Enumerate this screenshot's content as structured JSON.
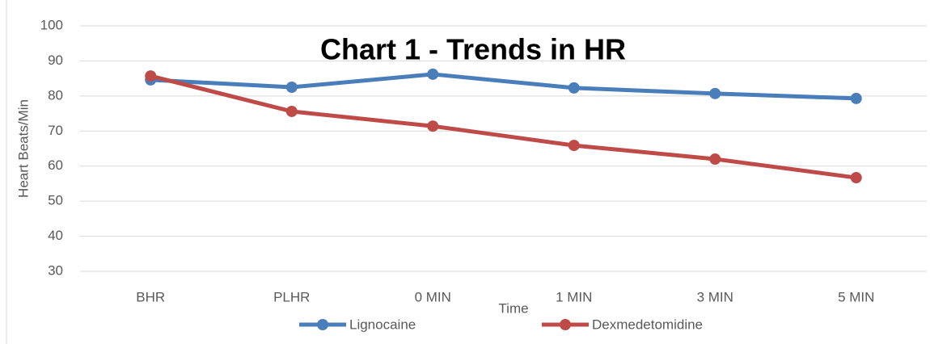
{
  "chart_data": {
    "type": "line",
    "title": "Chart 1 - Trends in HR",
    "x_label": "Time",
    "y_label": "Heart Beats/Min",
    "categories": [
      "BHR",
      "PLHR",
      "0 MIN",
      "1 MIN",
      "3 MIN",
      "5 MIN"
    ],
    "series": [
      {
        "name": "Lignocaine",
        "color": "#4a7ebb",
        "values": [
          84.6,
          82.5,
          86.2,
          82.3,
          80.7,
          79.3
        ]
      },
      {
        "name": "Dexmedetomidine",
        "color": "#be4b48",
        "values": [
          85.7,
          75.6,
          71.4,
          65.9,
          62.0,
          56.7
        ]
      }
    ],
    "ylim": [
      30,
      100
    ],
    "yticks": [
      30,
      40,
      50,
      60,
      70,
      80,
      90,
      100
    ],
    "grid": true,
    "legend": "bottom"
  }
}
